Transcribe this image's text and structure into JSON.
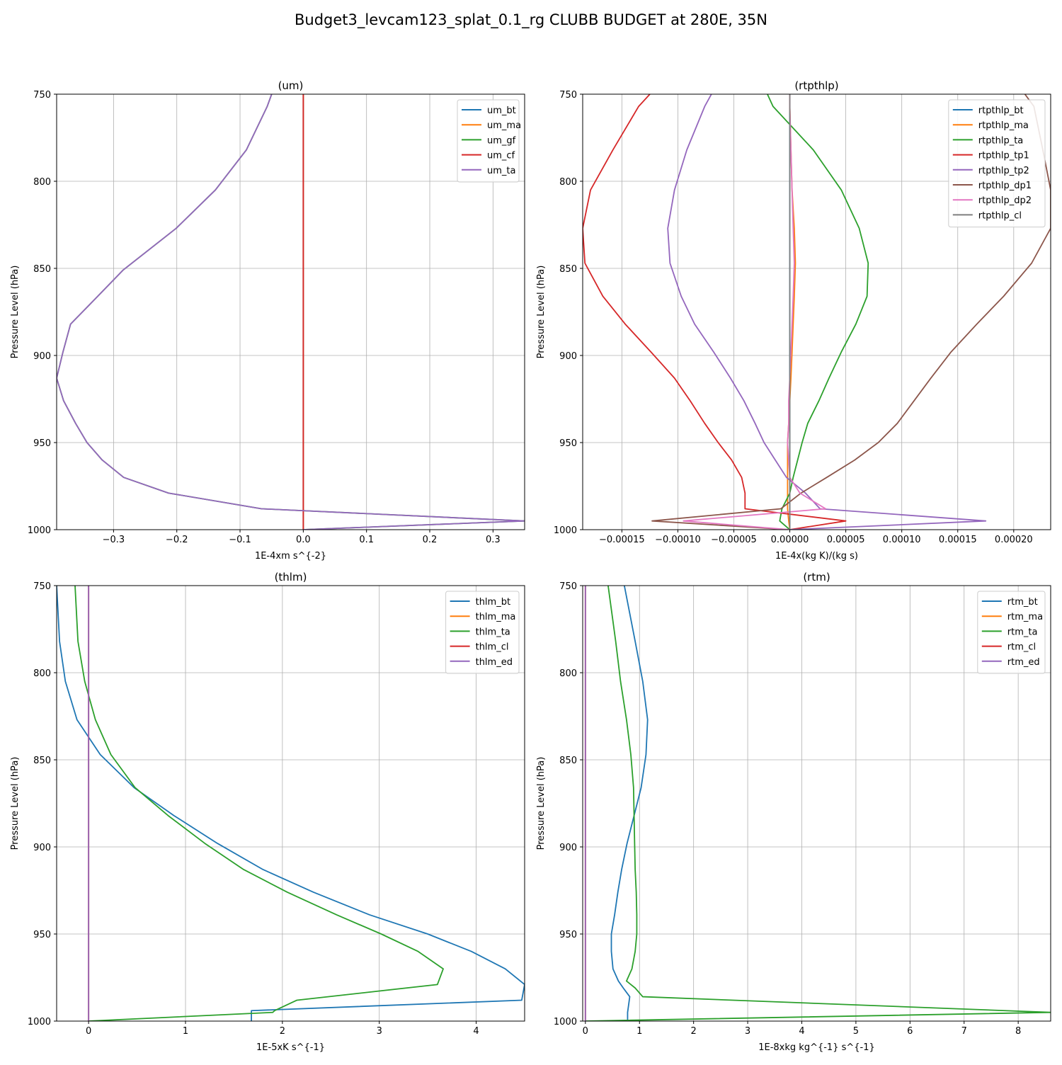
{
  "figure": {
    "title": "Budget3_levcam123_splat_0.1_rg CLUBB BUDGET at 280E, 35N"
  },
  "chart_data": [
    {
      "type": "line",
      "title": "(um)",
      "xlabel": "1E-4xm s^{-2}",
      "ylabel": "Pressure Level (hPa)",
      "xlim": [
        -0.39,
        0.35
      ],
      "ylim": [
        1000,
        750
      ],
      "xticks": [
        -0.3,
        -0.2,
        -0.1,
        0.0,
        0.1,
        0.2,
        0.3
      ],
      "xtick_labels": [
        "−0.3",
        "−0.2",
        "−0.1",
        "0.0",
        "0.1",
        "0.2",
        "0.3"
      ],
      "yticks": [
        750,
        800,
        850,
        900,
        950,
        1000
      ],
      "ytick_labels": [
        "750",
        "800",
        "850",
        "900",
        "950",
        "1000"
      ],
      "grid": true,
      "legend": "top-right",
      "pressure": [
        750,
        757,
        782,
        805,
        827,
        851,
        866,
        882,
        898,
        913,
        926,
        939,
        950,
        960,
        970,
        979,
        988,
        995,
        1000
      ],
      "series": [
        {
          "name": "um_bt",
          "color": "#1f77b4",
          "values": [
            0.0,
            0.0,
            0.0,
            0.0,
            0.0,
            0.0,
            0.0,
            0.0,
            0.0,
            0.0,
            0.0,
            0.0,
            0.0,
            0.0,
            0.0,
            0.0,
            0.0,
            0.0,
            0.0
          ]
        },
        {
          "name": "um_ma",
          "color": "#ff7f0e",
          "values": [
            0.0,
            0.0,
            0.0,
            0.0,
            0.0,
            0.0,
            0.0,
            0.0,
            0.0,
            0.0,
            0.0,
            0.0,
            0.0,
            0.0,
            0.0,
            0.0,
            0.0,
            0.0,
            0.0
          ]
        },
        {
          "name": "um_gf",
          "color": "#2ca02c",
          "values": [
            -0.05,
            -0.057,
            -0.09,
            -0.139,
            -0.201,
            -0.285,
            -0.325,
            -0.368,
            -0.38,
            -0.39,
            -0.379,
            -0.36,
            -0.342,
            -0.318,
            -0.284,
            -0.213,
            -0.066,
            0.35,
            0.0
          ]
        },
        {
          "name": "um_cf",
          "color": "#d62728",
          "values": [
            0.0,
            0.0,
            0.0,
            0.0,
            0.0,
            0.0,
            0.0,
            0.0,
            0.0,
            0.0,
            0.0,
            0.0,
            0.0,
            0.0,
            0.0,
            0.0,
            0.0,
            0.0,
            0.0
          ]
        },
        {
          "name": "um_ta",
          "color": "#9467bd",
          "values": [
            -0.05,
            -0.057,
            -0.09,
            -0.139,
            -0.201,
            -0.285,
            -0.325,
            -0.368,
            -0.38,
            -0.39,
            -0.379,
            -0.36,
            -0.342,
            -0.318,
            -0.284,
            -0.213,
            -0.066,
            0.35,
            0.0
          ]
        }
      ]
    },
    {
      "type": "line",
      "title": "(rtpthlp)",
      "xlabel": "1E-4x(kg K)/(kg s)",
      "ylabel": "Pressure Level (hPa)",
      "xlim": [
        -0.000185,
        0.000233
      ],
      "ylim": [
        1000,
        750
      ],
      "xticks": [
        -0.00015,
        -0.0001,
        -5e-05,
        0.0,
        5e-05,
        0.0001,
        0.00015,
        0.0002
      ],
      "xtick_labels": [
        "−0.00015",
        "−0.00010",
        "−0.00005",
        "0.00000",
        "0.00005",
        "0.00010",
        "0.00015",
        "0.00020"
      ],
      "yticks": [
        750,
        800,
        850,
        900,
        950,
        1000
      ],
      "ytick_labels": [
        "750",
        "800",
        "850",
        "900",
        "950",
        "1000"
      ],
      "grid": true,
      "legend": "top-right",
      "pressure": [
        750,
        757,
        782,
        805,
        827,
        847,
        866,
        882,
        898,
        913,
        926,
        939,
        950,
        960,
        970,
        979,
        988,
        995,
        1000
      ],
      "series": [
        {
          "name": "rtpthlp_bt",
          "color": "#1f77b4",
          "values": [
            0.0,
            0.0,
            0.0,
            0.0,
            0.0,
            0.0,
            0.0,
            0.0,
            0.0,
            0.0,
            0.0,
            0.0,
            0.0,
            0.0,
            0.0,
            0.0,
            0.0,
            0.0,
            0.0
          ]
        },
        {
          "name": "rtpthlp_ma",
          "color": "#ff7f0e",
          "values": [
            0.0,
            0.0,
            1e-06,
            2e-06,
            4e-06,
            5e-06,
            4e-06,
            3e-06,
            2e-06,
            1e-06,
            0.0,
            -1e-06,
            -2e-06,
            -2e-06,
            -2e-06,
            -2e-06,
            -2e-06,
            -1e-06,
            0.0
          ]
        },
        {
          "name": "rtpthlp_ta",
          "color": "#2ca02c",
          "values": [
            -2e-05,
            -1.5e-05,
            2.1e-05,
            4.6e-05,
            6.2e-05,
            7e-05,
            6.9e-05,
            5.9e-05,
            4.6e-05,
            3.5e-05,
            2.6e-05,
            1.6e-05,
            1.1e-05,
            7e-06,
            3e-06,
            0.0,
            -7e-06,
            -9e-06,
            0.0
          ]
        },
        {
          "name": "rtpthlp_tp1",
          "color": "#d62728",
          "values": [
            -0.000125,
            -0.000135,
            -0.000158,
            -0.000178,
            -0.000185,
            -0.000183,
            -0.000167,
            -0.000147,
            -0.000124,
            -0.000103,
            -8.9e-05,
            -7.6e-05,
            -6.4e-05,
            -5.2e-05,
            -4.3e-05,
            -4e-05,
            -4e-05,
            5e-05,
            0.0
          ]
        },
        {
          "name": "rtpthlp_tp2",
          "color": "#9467bd",
          "values": [
            -7e-05,
            -7.6e-05,
            -9.2e-05,
            -0.000103,
            -0.000109,
            -0.000107,
            -9.7e-05,
            -8.5e-05,
            -6.8e-05,
            -5.3e-05,
            -4.1e-05,
            -3.1e-05,
            -2.3e-05,
            -1.3e-05,
            -3e-06,
            1.4e-05,
            2.7e-05,
            0.000175,
            0.0
          ]
        },
        {
          "name": "rtpthlp_dp1",
          "color": "#8c564b",
          "values": [
            0.00021,
            0.000218,
            0.000226,
            0.000233,
            0.000233,
            0.000216,
            0.000191,
            0.000167,
            0.000144,
            0.000126,
            0.000111,
            9.6e-05,
            7.9e-05,
            5.8e-05,
            3.3e-05,
            1e-05,
            -8e-06,
            -0.000123,
            0.0
          ]
        },
        {
          "name": "rtpthlp_dp2",
          "color": "#e377c2",
          "values": [
            0.0,
            0.0,
            1e-06,
            2e-06,
            3e-06,
            4e-06,
            3e-06,
            2e-06,
            1e-06,
            0.0,
            -1e-06,
            -1e-06,
            -2e-06,
            -1e-06,
            0.0,
            9e-06,
            3.2e-05,
            -9.5e-05,
            0.0
          ]
        },
        {
          "name": "rtpthlp_cl",
          "color": "#7f7f7f",
          "values": [
            0.0,
            0.0,
            0.0,
            0.0,
            0.0,
            0.0,
            0.0,
            0.0,
            0.0,
            0.0,
            0.0,
            0.0,
            0.0,
            0.0,
            0.0,
            0.0,
            0.0,
            0.0,
            0.0
          ]
        }
      ]
    },
    {
      "type": "line",
      "title": "(thlm)",
      "xlabel": "1E-5xK s^{-1}",
      "ylabel": "Pressure Level (hPa)",
      "xlim": [
        -0.33,
        4.5
      ],
      "ylim": [
        1000,
        750
      ],
      "xticks": [
        0,
        1,
        2,
        3,
        4
      ],
      "xtick_labels": [
        "0",
        "1",
        "2",
        "3",
        "4"
      ],
      "yticks": [
        750,
        800,
        850,
        900,
        950,
        1000
      ],
      "ytick_labels": [
        "750",
        "800",
        "850",
        "900",
        "950",
        "1000"
      ],
      "grid": true,
      "legend": "top-right",
      "pressure": [
        750,
        782,
        805,
        827,
        847,
        866,
        882,
        898,
        913,
        926,
        939,
        950,
        960,
        970,
        979,
        988,
        994,
        995,
        1000
      ],
      "series": [
        {
          "name": "thlm_bt",
          "color": "#1f77b4",
          "values": [
            -0.33,
            -0.3,
            -0.24,
            -0.12,
            0.12,
            0.47,
            0.88,
            1.33,
            1.8,
            2.32,
            2.9,
            3.5,
            3.95,
            4.3,
            4.5,
            4.47,
            1.68,
            1.68,
            1.68
          ]
        },
        {
          "name": "thlm_ma",
          "color": "#ff7f0e",
          "values": [
            0.0,
            0.0,
            0.0,
            0.0,
            0.0,
            0.0,
            0.0,
            0.0,
            0.0,
            0.0,
            0.0,
            0.0,
            0.0,
            0.0,
            0.0,
            0.0,
            0.0,
            0.0,
            0.0
          ]
        },
        {
          "name": "thlm_ta",
          "color": "#2ca02c",
          "values": [
            -0.14,
            -0.11,
            -0.04,
            0.07,
            0.23,
            0.48,
            0.82,
            1.2,
            1.6,
            2.05,
            2.56,
            3.02,
            3.4,
            3.66,
            3.6,
            2.15,
            1.92,
            1.9,
            0.0
          ]
        },
        {
          "name": "thlm_cl",
          "color": "#d62728",
          "values": [
            0.0,
            0.0,
            0.0,
            0.0,
            0.0,
            0.0,
            0.0,
            0.0,
            0.0,
            0.0,
            0.0,
            0.0,
            0.0,
            0.0,
            0.0,
            0.0,
            0.0,
            0.0,
            0.0
          ]
        },
        {
          "name": "thlm_ed",
          "color": "#9467bd",
          "values": [
            0.0,
            0.0,
            0.0,
            0.0,
            0.0,
            0.0,
            0.0,
            0.0,
            0.0,
            0.0,
            0.0,
            0.0,
            0.0,
            0.0,
            0.0,
            0.0,
            0.0,
            0.0,
            0.0
          ]
        }
      ]
    },
    {
      "type": "line",
      "title": "(rtm)",
      "xlabel": "1E-8xkg kg^{-1} s^{-1}",
      "ylabel": "Pressure Level (hPa)",
      "xlim": [
        -0.05,
        8.6
      ],
      "ylim": [
        1000,
        750
      ],
      "xticks": [
        0,
        1,
        2,
        3,
        4,
        5,
        6,
        7,
        8
      ],
      "xtick_labels": [
        "0",
        "1",
        "2",
        "3",
        "4",
        "5",
        "6",
        "7",
        "8"
      ],
      "yticks": [
        750,
        800,
        850,
        900,
        950,
        1000
      ],
      "ytick_labels": [
        "750",
        "800",
        "850",
        "900",
        "950",
        "1000"
      ],
      "grid": true,
      "legend": "top-right",
      "pressure": [
        750,
        782,
        805,
        827,
        847,
        866,
        882,
        898,
        913,
        926,
        939,
        950,
        960,
        970,
        977,
        981,
        986,
        995,
        1000
      ],
      "series": [
        {
          "name": "rtm_bt",
          "color": "#1f77b4",
          "values": [
            0.72,
            0.92,
            1.06,
            1.15,
            1.12,
            1.03,
            0.9,
            0.77,
            0.67,
            0.6,
            0.54,
            0.48,
            0.48,
            0.51,
            0.61,
            0.7,
            0.82,
            0.78,
            0.78
          ]
        },
        {
          "name": "rtm_ma",
          "color": "#ff7f0e",
          "values": [
            0.0,
            0.0,
            0.0,
            0.0,
            0.0,
            0.0,
            0.0,
            0.0,
            0.0,
            0.0,
            0.0,
            0.0,
            0.0,
            0.0,
            0.0,
            0.0,
            0.0,
            0.0,
            0.0
          ]
        },
        {
          "name": "rtm_ta",
          "color": "#2ca02c",
          "values": [
            0.42,
            0.56,
            0.65,
            0.76,
            0.84,
            0.89,
            0.9,
            0.91,
            0.92,
            0.94,
            0.95,
            0.95,
            0.92,
            0.86,
            0.76,
            0.92,
            1.06,
            8.6,
            0.0
          ]
        },
        {
          "name": "rtm_cl",
          "color": "#d62728",
          "values": [
            0.0,
            0.0,
            0.0,
            0.0,
            0.0,
            0.0,
            0.0,
            0.0,
            0.0,
            0.0,
            0.0,
            0.0,
            0.0,
            0.0,
            0.0,
            0.0,
            0.0,
            0.0,
            0.0
          ]
        },
        {
          "name": "rtm_ed",
          "color": "#9467bd",
          "values": [
            0.0,
            0.0,
            0.0,
            0.0,
            0.0,
            0.0,
            0.0,
            0.0,
            0.0,
            0.0,
            0.0,
            0.0,
            0.0,
            0.0,
            0.0,
            0.0,
            0.0,
            0.0,
            0.0
          ]
        }
      ]
    }
  ]
}
